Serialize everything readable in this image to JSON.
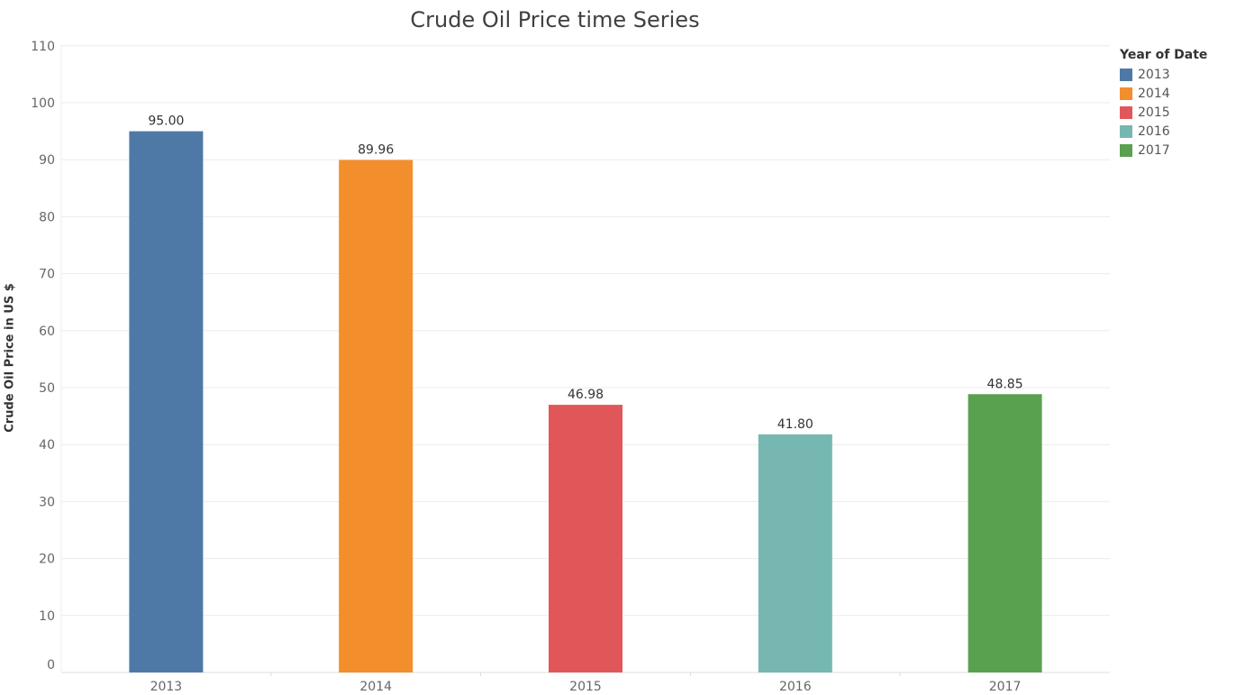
{
  "chart_data": {
    "type": "bar",
    "title": "Crude Oil Price time Series",
    "ylabel": "Crude Oil Price in US $",
    "xlabel": "",
    "categories": [
      "2013",
      "2014",
      "2015",
      "2016",
      "2017"
    ],
    "values": [
      95.0,
      89.96,
      46.98,
      41.8,
      48.85
    ],
    "value_labels": [
      "95.00",
      "89.96",
      "46.98",
      "41.80",
      "48.85"
    ],
    "colors": [
      "#4e79a7",
      "#f28e2b",
      "#e15759",
      "#76b7b2",
      "#59a14f"
    ],
    "ylim": [
      0,
      110
    ],
    "yticks": [
      0,
      10,
      20,
      30,
      40,
      50,
      60,
      70,
      80,
      90,
      100,
      110
    ],
    "grid": true,
    "legend": {
      "title": "Year of Date",
      "placement": "right",
      "items": [
        "2013",
        "2014",
        "2015",
        "2016",
        "2017"
      ]
    }
  }
}
